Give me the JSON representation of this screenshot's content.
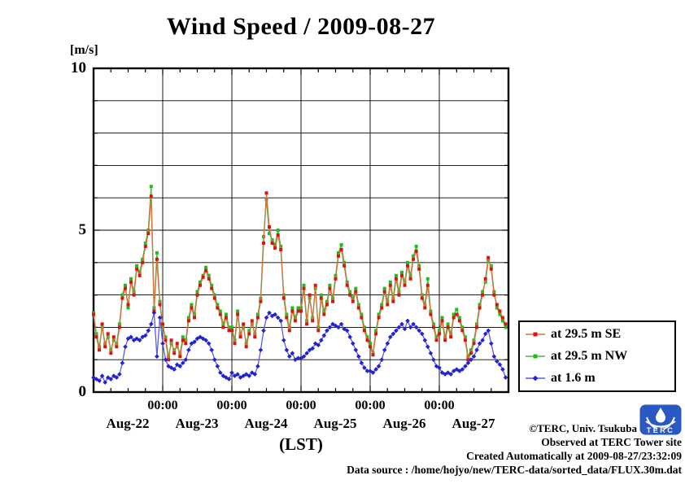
{
  "title": "Wind Speed / 2009-08-27",
  "y_axis": {
    "unit_label": "[m/s]",
    "tick_labels": [
      "10",
      "5",
      "0"
    ]
  },
  "x_axis": {
    "midnight_labels": [
      "00:00",
      "00:00",
      "00:00",
      "00:00",
      "00:00"
    ],
    "day_labels": [
      "Aug-22",
      "Aug-23",
      "Aug-24",
      "Aug-25",
      "Aug-26",
      "Aug-27"
    ],
    "axis_label": "(LST)"
  },
  "legend": {
    "items": [
      {
        "label": "at 29.5 m SE",
        "marker": "square",
        "marker_color": "#e01010",
        "line_color": "#d4713c"
      },
      {
        "label": "at 29.5 m NW",
        "marker": "square",
        "marker_color": "#17c117",
        "line_color": "#4cb84c"
      },
      {
        "label": "at 1.6 m",
        "marker": "diamond",
        "marker_color": "#2424cc",
        "line_color": "#5c5ce6"
      }
    ]
  },
  "footer": {
    "lines": [
      "©TERC, Univ. Tsukuba",
      "Observed at TERC Tower site",
      "Created Automatically at 2009-08-27/23:32:09",
      "Data source : /home/hojyo/new/TERC-data/sorted_data/FLUX.30m.dat"
    ]
  },
  "logo": {
    "text": "TERC",
    "color": "#2b59c3"
  },
  "chart_data": {
    "type": "line",
    "title": "Wind Speed / 2009-08-27",
    "xlabel": "(LST)",
    "ylabel": "m/s",
    "ylim": [
      0,
      10
    ],
    "y_gridline_step": 1,
    "grid": true,
    "legend_position": "outside-right-bottom",
    "x_start": "Aug-22 00:00 LST",
    "x_end": "Aug-28 00:00 LST",
    "x_step_hours": 1,
    "x_days": [
      "Aug-22",
      "Aug-23",
      "Aug-24",
      "Aug-25",
      "Aug-26",
      "Aug-27"
    ],
    "series": [
      {
        "name": "at 29.5 m SE",
        "values": [
          2.4,
          1.7,
          1.3,
          2.1,
          1.4,
          1.8,
          1.2,
          1.7,
          1.4,
          2.0,
          2.9,
          3.2,
          2.7,
          3.4,
          3.0,
          3.8,
          3.6,
          4.0,
          4.5,
          4.9,
          6.05,
          2.5,
          4.1,
          2.7,
          2.1,
          1.6,
          1.0,
          1.6,
          1.2,
          1.5,
          1.1,
          1.6,
          1.5,
          2.2,
          2.6,
          2.3,
          3.0,
          3.3,
          3.55,
          3.75,
          3.5,
          3.2,
          2.9,
          2.6,
          2.4,
          2.0,
          2.3,
          1.9,
          1.9,
          1.5,
          2.4,
          1.7,
          2.1,
          1.4,
          1.8,
          2.2,
          1.7,
          2.3,
          2.8,
          4.6,
          6.15,
          5.1,
          4.6,
          4.45,
          4.85,
          4.4,
          2.9,
          2.3,
          1.9,
          2.5,
          2.2,
          2.5,
          2.5,
          3.2,
          2.1,
          3.0,
          2.2,
          3.3,
          1.9,
          2.9,
          2.4,
          2.7,
          3.2,
          2.8,
          3.5,
          4.2,
          4.4,
          3.9,
          3.3,
          3.0,
          2.8,
          3.1,
          2.6,
          2.3,
          1.9,
          1.6,
          1.4,
          1.15,
          1.8,
          2.3,
          2.6,
          3.1,
          2.7,
          3.3,
          2.8,
          3.5,
          3.0,
          3.6,
          3.3,
          3.9,
          3.5,
          4.1,
          4.35,
          3.8,
          2.9,
          2.6,
          3.3,
          2.4,
          2.0,
          1.6,
          1.8,
          2.2,
          1.6,
          2.0,
          1.7,
          2.3,
          2.4,
          2.2,
          1.9,
          1.6,
          1.0,
          1.2,
          1.5,
          2.0,
          2.6,
          3.0,
          3.5,
          4.15,
          3.8,
          3.0,
          2.7,
          2.5,
          2.3,
          2.1
        ]
      },
      {
        "name": "at 29.5 m NW",
        "values": [
          2.45,
          1.8,
          1.4,
          2.0,
          1.5,
          1.7,
          1.3,
          1.6,
          1.5,
          2.1,
          3.0,
          3.3,
          2.6,
          3.5,
          3.1,
          3.9,
          3.7,
          4.1,
          4.6,
          5.0,
          6.35,
          2.6,
          4.3,
          2.8,
          2.0,
          1.7,
          1.1,
          1.5,
          1.3,
          1.4,
          1.2,
          1.7,
          1.6,
          2.3,
          2.7,
          2.4,
          3.1,
          3.4,
          3.6,
          3.85,
          3.6,
          3.3,
          3.0,
          2.7,
          2.5,
          2.1,
          2.4,
          2.0,
          2.0,
          1.6,
          2.5,
          1.8,
          2.0,
          1.5,
          1.9,
          2.1,
          1.8,
          2.4,
          2.9,
          4.8,
          5.95,
          4.9,
          4.7,
          4.55,
          5.0,
          4.5,
          3.0,
          2.4,
          2.0,
          2.6,
          2.3,
          2.6,
          2.6,
          3.3,
          2.2,
          2.9,
          2.3,
          3.2,
          2.0,
          3.0,
          2.5,
          2.8,
          3.3,
          2.9,
          3.6,
          4.3,
          4.55,
          4.0,
          3.4,
          3.1,
          2.9,
          3.2,
          2.7,
          2.4,
          2.0,
          1.7,
          1.5,
          1.2,
          1.9,
          2.4,
          2.7,
          3.2,
          2.8,
          3.4,
          2.9,
          3.6,
          3.1,
          3.7,
          3.4,
          4.0,
          3.6,
          4.2,
          4.5,
          3.9,
          3.0,
          2.7,
          3.5,
          2.5,
          2.1,
          1.7,
          1.9,
          2.3,
          1.7,
          2.1,
          1.8,
          2.4,
          2.55,
          2.3,
          2.0,
          1.7,
          1.1,
          1.3,
          1.6,
          2.1,
          2.7,
          3.1,
          3.4,
          4.05,
          3.9,
          3.1,
          2.6,
          2.4,
          2.2,
          2.0
        ]
      },
      {
        "name": "at 1.6 m",
        "values": [
          0.45,
          0.4,
          0.35,
          0.5,
          0.3,
          0.45,
          0.4,
          0.5,
          0.45,
          0.55,
          0.9,
          1.4,
          1.65,
          1.7,
          1.6,
          1.65,
          1.6,
          1.7,
          1.75,
          1.9,
          2.1,
          2.45,
          1.1,
          2.3,
          1.5,
          1.0,
          0.8,
          0.75,
          0.7,
          0.85,
          0.8,
          0.9,
          1.0,
          1.3,
          1.5,
          1.55,
          1.65,
          1.7,
          1.65,
          1.6,
          1.5,
          1.3,
          1.0,
          0.8,
          0.6,
          0.5,
          0.45,
          0.4,
          0.6,
          0.5,
          0.55,
          0.45,
          0.5,
          0.55,
          0.5,
          0.6,
          0.55,
          0.8,
          1.3,
          1.9,
          2.3,
          2.45,
          2.35,
          2.4,
          2.3,
          2.2,
          1.6,
          1.3,
          1.1,
          1.2,
          1.0,
          1.05,
          1.05,
          1.1,
          1.2,
          1.3,
          1.35,
          1.5,
          1.45,
          1.6,
          1.75,
          1.9,
          2.0,
          2.1,
          2.05,
          2.0,
          2.1,
          1.95,
          1.9,
          1.7,
          1.5,
          1.3,
          1.1,
          0.9,
          0.75,
          0.65,
          0.65,
          0.6,
          0.7,
          0.8,
          1.0,
          1.3,
          1.5,
          1.7,
          1.8,
          1.9,
          2.0,
          2.1,
          1.95,
          2.2,
          2.0,
          2.1,
          2.0,
          1.9,
          1.8,
          1.6,
          1.4,
          1.2,
          1.0,
          0.8,
          0.75,
          0.6,
          0.55,
          0.6,
          0.55,
          0.65,
          0.7,
          0.65,
          0.7,
          0.8,
          0.9,
          1.0,
          1.1,
          1.3,
          1.5,
          1.6,
          1.8,
          1.9,
          1.5,
          1.1,
          0.95,
          0.85,
          0.7,
          0.45
        ]
      }
    ]
  }
}
